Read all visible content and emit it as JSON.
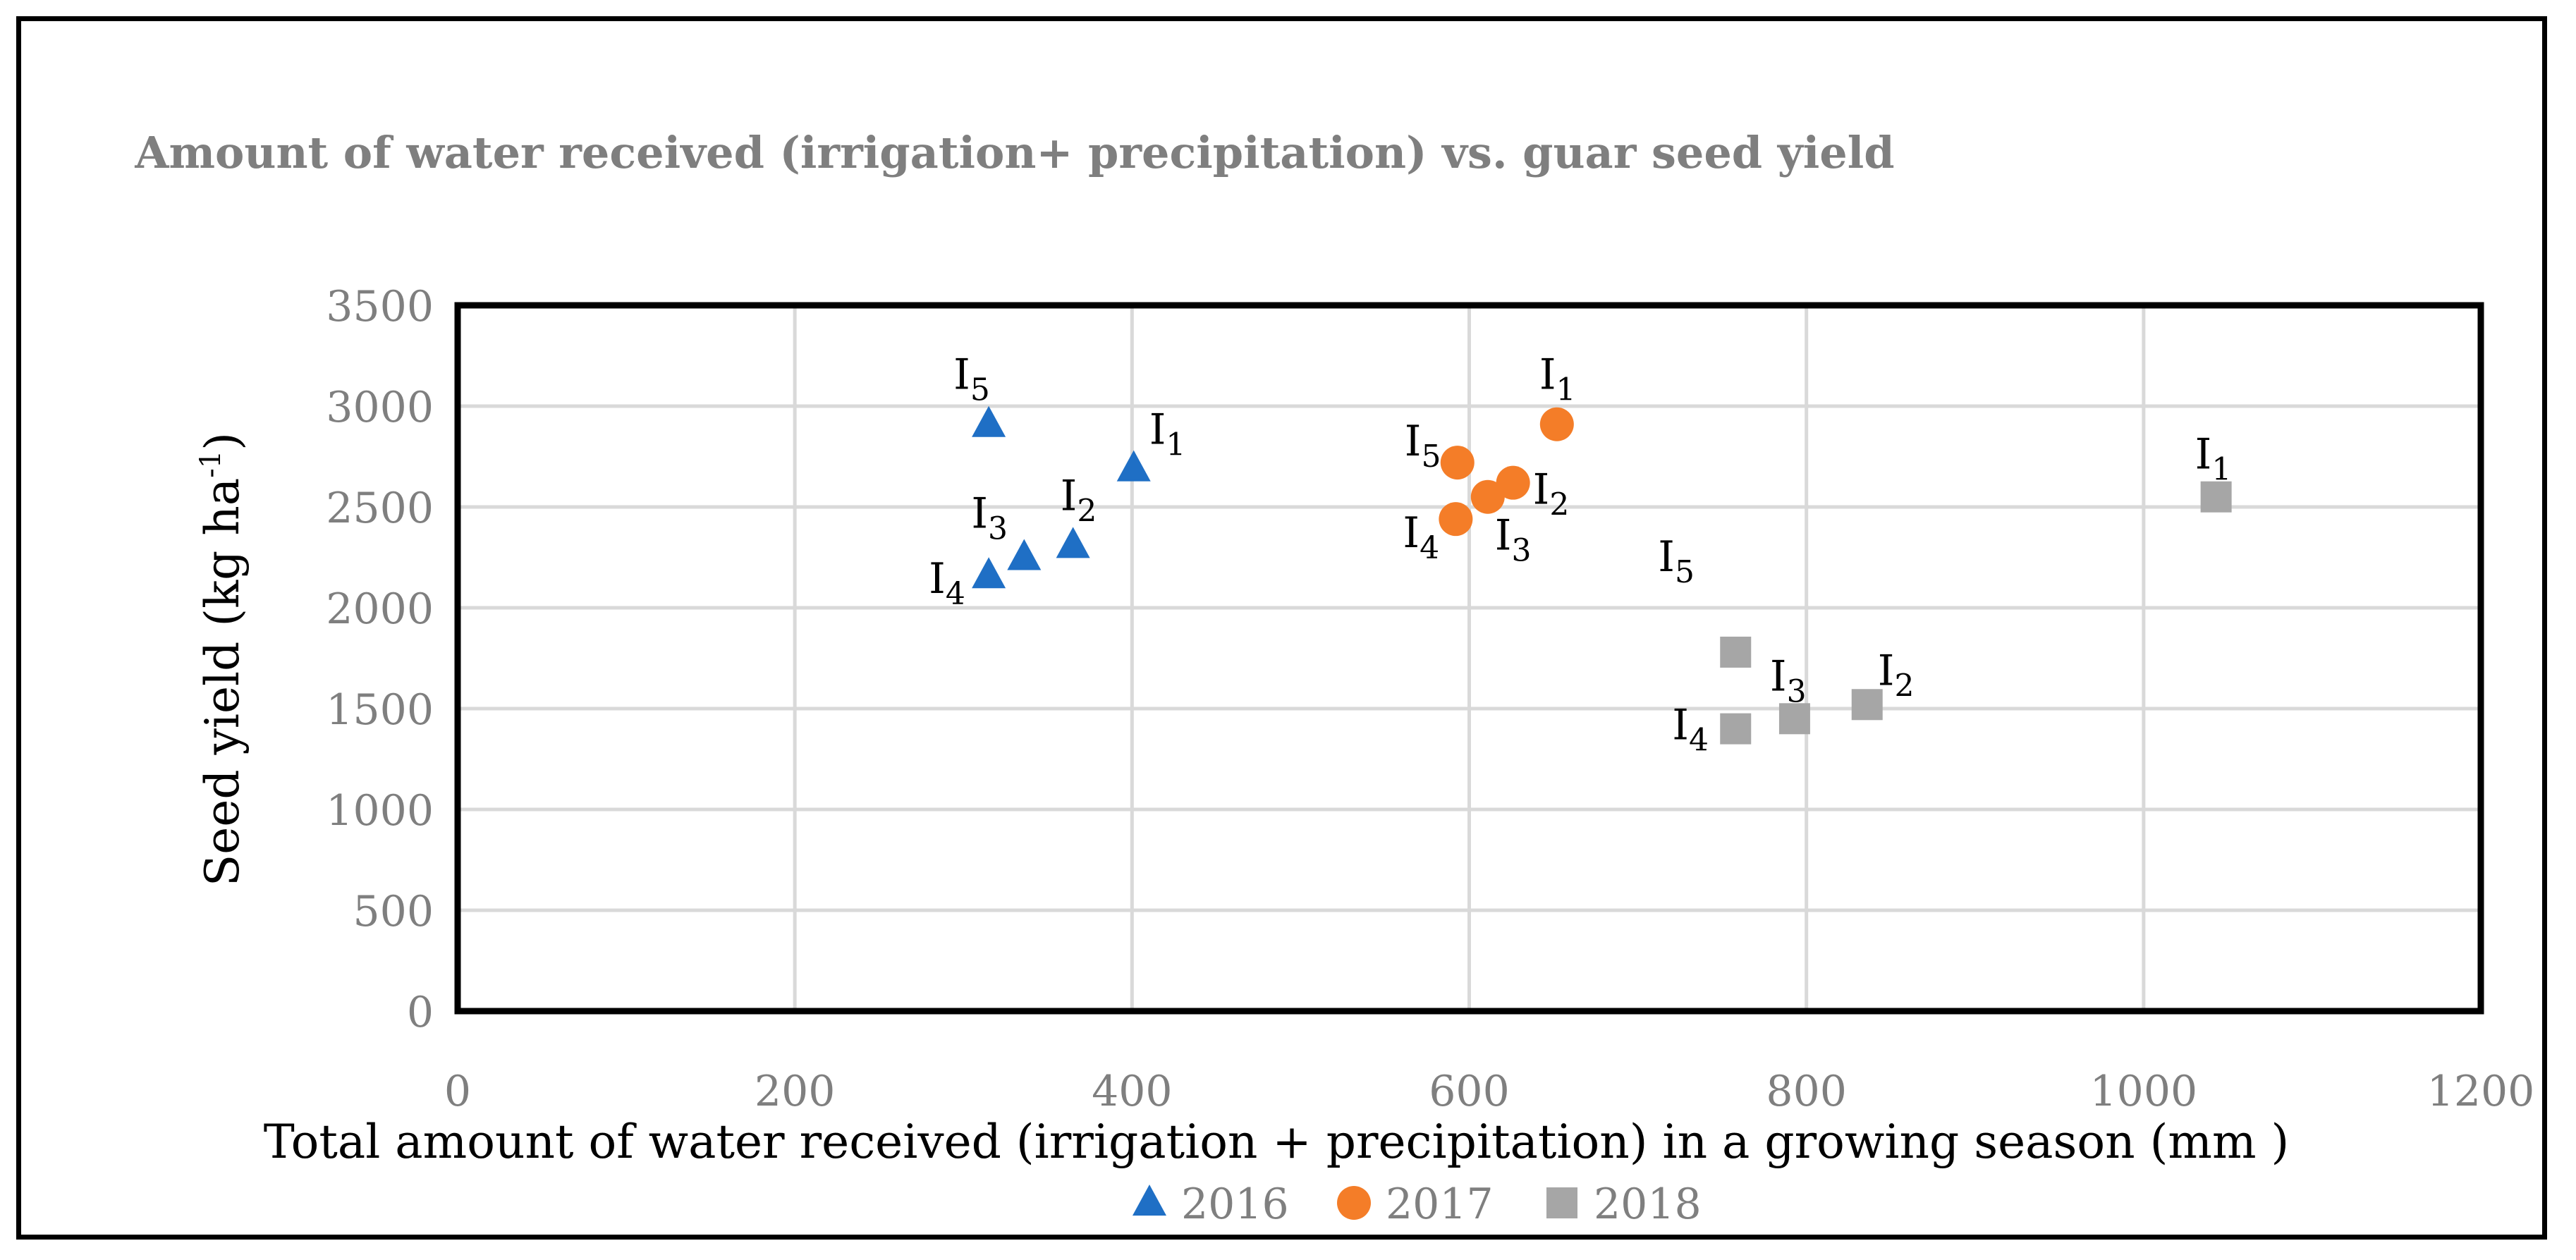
{
  "chart_data": {
    "type": "scatter",
    "title": "Amount of water received (irrigation+ precipitation) vs. guar seed yield",
    "xlabel": "Total amount of water received (irrigation + precipitation) in a growing season (mm )",
    "ylabel_main": "Seed yield (kg ha",
    "ylabel_sup": "-1",
    "ylabel_close": ")",
    "xlim": [
      0,
      1200
    ],
    "ylim": [
      0,
      3500
    ],
    "x_ticks": [
      "0",
      "200",
      "400",
      "600",
      "800",
      "1000",
      "1200"
    ],
    "y_ticks": [
      "0",
      "500",
      "1000",
      "1500",
      "2000",
      "2500",
      "3000",
      "3500"
    ],
    "grid": true,
    "legend_position": "bottom",
    "series": [
      {
        "name": "2016",
        "marker": "triangle",
        "color": "#1f6fc5",
        "points": [
          {
            "x": 401,
            "y": 2690,
            "label": "I",
            "sub": "1"
          },
          {
            "x": 365,
            "y": 2310,
            "label": "I",
            "sub": "2"
          },
          {
            "x": 336,
            "y": 2250,
            "label": "I",
            "sub": "3"
          },
          {
            "x": 315,
            "y": 2160,
            "label": "I",
            "sub": "4"
          },
          {
            "x": 315,
            "y": 2910,
            "label": "I",
            "sub": "5"
          }
        ]
      },
      {
        "name": "2017",
        "marker": "circle",
        "color": "#f47d28",
        "points": [
          {
            "x": 652,
            "y": 2910,
            "label": "I",
            "sub": "1"
          },
          {
            "x": 626,
            "y": 2620,
            "label": "I",
            "sub": "2"
          },
          {
            "x": 611,
            "y": 2550,
            "label": "I",
            "sub": "3"
          },
          {
            "x": 592,
            "y": 2440,
            "label": "I",
            "sub": "4"
          },
          {
            "x": 593,
            "y": 2720,
            "label": "I",
            "sub": "5"
          }
        ]
      },
      {
        "name": "2018",
        "marker": "square",
        "color": "#a6a6a6",
        "points": [
          {
            "x": 1043,
            "y": 2550,
            "label": "I",
            "sub": "1"
          },
          {
            "x": 836,
            "y": 1520,
            "label": "I",
            "sub": "2"
          },
          {
            "x": 793,
            "y": 1450,
            "label": "I",
            "sub": "3"
          },
          {
            "x": 758,
            "y": 1400,
            "label": "I",
            "sub": "4"
          },
          {
            "x": 758,
            "y": 1780,
            "label": "I",
            "sub": "5"
          }
        ]
      }
    ]
  }
}
